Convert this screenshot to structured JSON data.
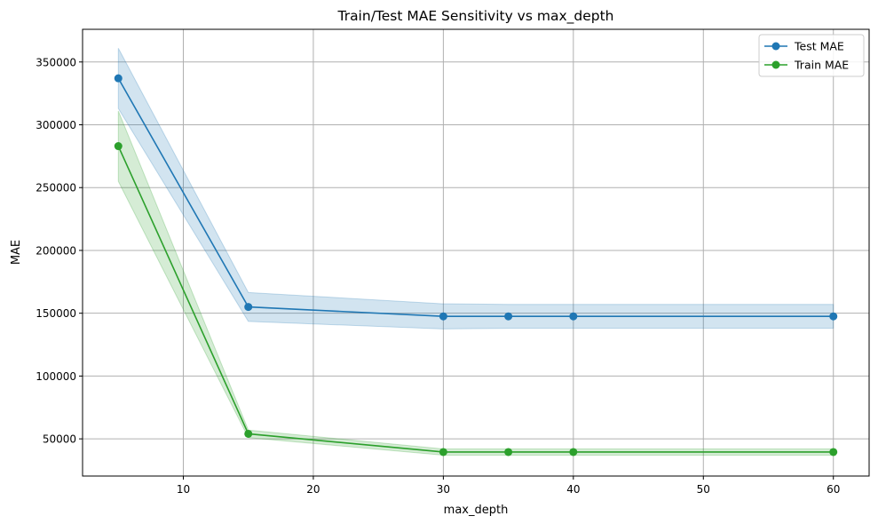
{
  "chart_data": {
    "type": "line",
    "title": "Train/Test MAE Sensitivity vs max_depth",
    "xlabel": "max_depth",
    "ylabel": "MAE",
    "xlim": [
      2.25,
      62.75
    ],
    "ylim": [
      20400,
      376000
    ],
    "xticks": [
      10,
      20,
      30,
      40,
      50,
      60
    ],
    "yticks": [
      50000,
      100000,
      150000,
      200000,
      250000,
      300000,
      350000
    ],
    "grid": true,
    "legend_position": "top-right",
    "x": [
      5,
      15,
      30,
      35,
      40,
      60
    ],
    "series": [
      {
        "name": "Test MAE",
        "color": "#1f77b4",
        "values": [
          337000,
          155000,
          147500,
          147500,
          147500,
          147500
        ],
        "upper": [
          361000,
          166500,
          157500,
          157000,
          157000,
          157000
        ],
        "lower": [
          313000,
          143500,
          137500,
          138000,
          138000,
          138000
        ]
      },
      {
        "name": "Train MAE",
        "color": "#2ca02c",
        "values": [
          283000,
          54000,
          39500,
          39500,
          39500,
          39500
        ],
        "upper": [
          311000,
          57000,
          42000,
          42000,
          42000,
          42000
        ],
        "lower": [
          255000,
          51000,
          37000,
          37000,
          37000,
          37000
        ]
      }
    ]
  }
}
